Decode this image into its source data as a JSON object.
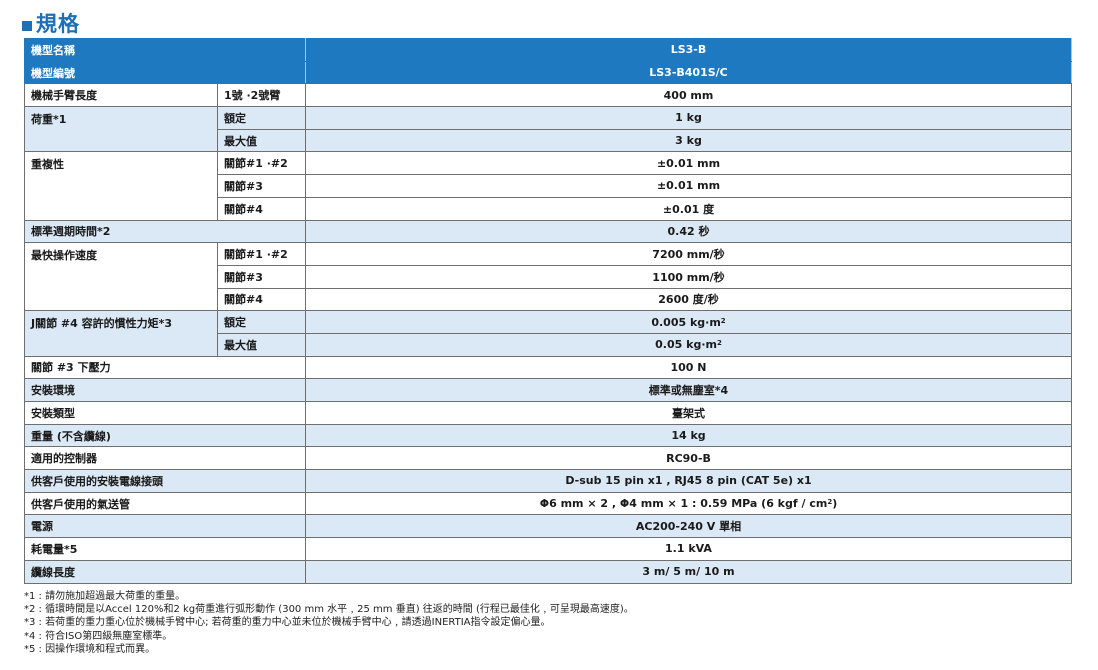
{
  "heading": {
    "title": "規格"
  },
  "colors": {
    "accent": "#1f79c1",
    "shade": "#dbe8f5"
  },
  "header_rows": [
    {
      "label": "機型名稱",
      "value": "LS3-B"
    },
    {
      "label": "機型編號",
      "value": "LS3-B401S/C"
    }
  ],
  "rows": {
    "arm_length": {
      "label": "機械手臂長度",
      "sub": "1號 ·2號臂",
      "value": "400 mm"
    },
    "payload": {
      "label": "荷重*1",
      "sub1": "額定",
      "value1": "1 kg",
      "sub2": "最大值",
      "value2": "3 kg"
    },
    "repeatability": {
      "label": "重複性",
      "sub1": "關節#1 ·#2",
      "value1": "±0.01 mm",
      "sub2": "關節#3",
      "value2": "±0.01 mm",
      "sub3": "關節#4",
      "value3": "±0.01 度"
    },
    "cycle_time": {
      "label": "標準週期時間*2",
      "value": "0.42 秒"
    },
    "max_speed": {
      "label": "最快操作速度",
      "sub1": "關節#1 ·#2",
      "value1": "7200 mm/秒",
      "sub2": "關節#3",
      "value2": "1100 mm/秒",
      "sub3": "關節#4",
      "value3": "2600 度/秒"
    },
    "inertia": {
      "label": "J關節 #4 容許的慣性力矩*3",
      "sub1": "額定",
      "value1": "0.005 kg·m",
      "sub2": "最大值",
      "value2": "0.05 kg·m",
      "sup": "2"
    },
    "downforce": {
      "label": "關節 #3 下壓力",
      "value": "100 N"
    },
    "environment": {
      "label": "安裝環境",
      "value": "標準或無塵室*4"
    },
    "mount_type": {
      "label": "安裝類型",
      "value": "臺架式"
    },
    "weight": {
      "label": "重量 (不含纜線)",
      "value": "14 kg"
    },
    "controller": {
      "label": "適用的控制器",
      "value": "RC90-B"
    },
    "connector": {
      "label": "供客戶使用的安裝電線接頭",
      "value": "D-sub 15 pin x1 , RJ45 8 pin (CAT 5e) x1"
    },
    "air_tube": {
      "label": "供客戶使用的氣送管",
      "value": "Φ6 mm × 2 , Φ4 mm × 1 : 0.59 MPa (6 kgf / cm",
      "sup": "2",
      "tail": ")"
    },
    "power": {
      "label": "電源",
      "value": "AC200-240 V 單相"
    },
    "consumption": {
      "label": "耗電量*5",
      "value": "1.1 kVA"
    },
    "cable_length": {
      "label": "纜線長度",
      "value": "3 m/ 5 m/ 10 m"
    }
  },
  "notes": [
    "*1 : 請勿施加超過最大荷重的重量。",
    "*2 : 循環時間是以Accel 120%和2 kg荷重進行弧形動作 (300 mm 水平﹐25 mm 垂直) 往返的時間 (行程已最佳化﹐可呈現最高速度)。",
    "*3 : 若荷重的重力重心位於機械手臂中心; 若荷重的重力中心並未位於機械手臂中心﹐請透過INERTIA指令設定偏心量。",
    "*4 : 符合ISO第四級無塵室標準。",
    "*5 : 因操作環境和程式而異。"
  ]
}
